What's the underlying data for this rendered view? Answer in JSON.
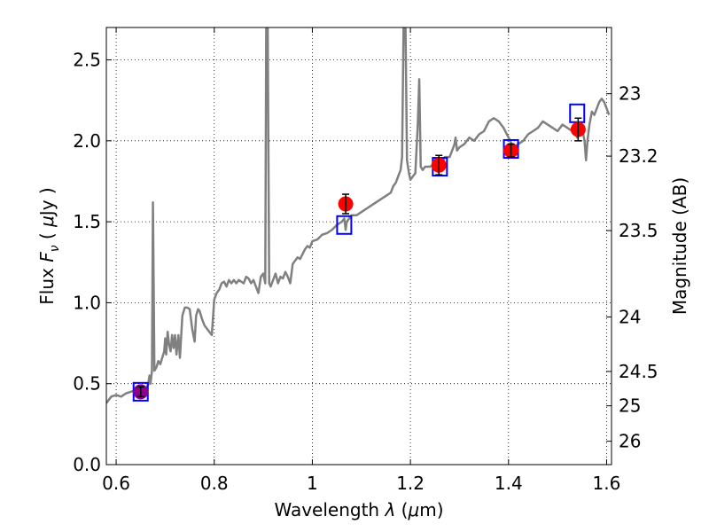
{
  "chart_data": {
    "type": "scatter",
    "title": "",
    "xlabel": {
      "prefix": "Wavelength ",
      "var": "λ",
      "unit_open": " (",
      "unit_mu": "μ",
      "unit_rest": "m)"
    },
    "ylabel": {
      "prefix": "Flux  ",
      "var": "F",
      "sub": "ν",
      "unit_open": "  ( ",
      "unit_mu": "μ",
      "unit_rest": "Jy )"
    },
    "ylabel_right": "Magnitude (AB)",
    "xlim": [
      0.58,
      1.61
    ],
    "ylim": [
      0.0,
      2.7
    ],
    "grid": true,
    "x_ticks": [
      {
        "value": 0.6,
        "label": "0.6"
      },
      {
        "value": 0.8,
        "label": "0.8"
      },
      {
        "value": 1.0,
        "label": "1"
      },
      {
        "value": 1.2,
        "label": "1.2"
      },
      {
        "value": 1.4,
        "label": "1.4"
      },
      {
        "value": 1.6,
        "label": "1.6"
      }
    ],
    "y_ticks": [
      {
        "value": 0.0,
        "label": "0.0"
      },
      {
        "value": 0.5,
        "label": "0.5"
      },
      {
        "value": 1.0,
        "label": "1.0"
      },
      {
        "value": 1.5,
        "label": "1.5"
      },
      {
        "value": 2.0,
        "label": "2.0"
      },
      {
        "value": 2.5,
        "label": "2.5"
      }
    ],
    "right_ticks": [
      {
        "mag": 23.0,
        "label": "23"
      },
      {
        "mag": 23.2,
        "label": "23.2"
      },
      {
        "mag": 23.5,
        "label": "23.5"
      },
      {
        "mag": 24.0,
        "label": "24"
      },
      {
        "mag": 24.5,
        "label": "24.5"
      },
      {
        "mag": 25.0,
        "label": "25"
      },
      {
        "mag": 26.0,
        "label": "26"
      }
    ],
    "series": [
      {
        "name": "model_spectrum",
        "kind": "line",
        "color": "#808080",
        "points": [
          [
            0.58,
            0.38
          ],
          [
            0.59,
            0.42
          ],
          [
            0.6,
            0.43
          ],
          [
            0.61,
            0.42
          ],
          [
            0.62,
            0.44
          ],
          [
            0.63,
            0.45
          ],
          [
            0.64,
            0.46
          ],
          [
            0.65,
            0.46
          ],
          [
            0.66,
            0.47
          ],
          [
            0.665,
            0.49
          ],
          [
            0.668,
            0.55
          ],
          [
            0.67,
            0.5
          ],
          [
            0.673,
            0.58
          ],
          [
            0.675,
            1.62
          ],
          [
            0.678,
            0.58
          ],
          [
            0.682,
            0.6
          ],
          [
            0.686,
            0.64
          ],
          [
            0.69,
            0.62
          ],
          [
            0.694,
            0.66
          ],
          [
            0.698,
            0.7
          ],
          [
            0.7,
            0.78
          ],
          [
            0.702,
            0.68
          ],
          [
            0.705,
            0.82
          ],
          [
            0.708,
            0.74
          ],
          [
            0.711,
            0.7
          ],
          [
            0.714,
            0.8
          ],
          [
            0.717,
            0.72
          ],
          [
            0.72,
            0.8
          ],
          [
            0.723,
            0.68
          ],
          [
            0.727,
            0.8
          ],
          [
            0.73,
            0.66
          ],
          [
            0.735,
            0.92
          ],
          [
            0.74,
            0.97
          ],
          [
            0.745,
            0.97
          ],
          [
            0.75,
            0.96
          ],
          [
            0.755,
            0.84
          ],
          [
            0.76,
            0.76
          ],
          [
            0.763,
            0.92
          ],
          [
            0.767,
            0.96
          ],
          [
            0.77,
            0.95
          ],
          [
            0.775,
            0.9
          ],
          [
            0.78,
            0.86
          ],
          [
            0.785,
            0.84
          ],
          [
            0.79,
            0.82
          ],
          [
            0.795,
            0.8
          ],
          [
            0.8,
            1.02
          ],
          [
            0.805,
            1.06
          ],
          [
            0.81,
            1.08
          ],
          [
            0.815,
            1.12
          ],
          [
            0.82,
            1.13
          ],
          [
            0.825,
            1.1
          ],
          [
            0.83,
            1.14
          ],
          [
            0.835,
            1.12
          ],
          [
            0.84,
            1.14
          ],
          [
            0.845,
            1.12
          ],
          [
            0.85,
            1.14
          ],
          [
            0.86,
            1.12
          ],
          [
            0.865,
            1.16
          ],
          [
            0.87,
            1.15
          ],
          [
            0.875,
            1.12
          ],
          [
            0.88,
            1.14
          ],
          [
            0.885,
            1.1
          ],
          [
            0.89,
            1.06
          ],
          [
            0.895,
            1.16
          ],
          [
            0.9,
            1.18
          ],
          [
            0.904,
            1.12
          ],
          [
            0.906,
            2.7
          ],
          [
            0.909,
            2.7
          ],
          [
            0.912,
            1.12
          ],
          [
            0.915,
            1.1
          ],
          [
            0.92,
            1.14
          ],
          [
            0.925,
            1.18
          ],
          [
            0.93,
            1.12
          ],
          [
            0.935,
            1.16
          ],
          [
            0.94,
            1.15
          ],
          [
            0.945,
            1.19
          ],
          [
            0.95,
            1.16
          ],
          [
            0.955,
            1.12
          ],
          [
            0.96,
            1.24
          ],
          [
            0.965,
            1.26
          ],
          [
            0.97,
            1.28
          ],
          [
            0.975,
            1.27
          ],
          [
            0.98,
            1.3
          ],
          [
            0.985,
            1.33
          ],
          [
            0.99,
            1.35
          ],
          [
            0.995,
            1.34
          ],
          [
            1.0,
            1.38
          ],
          [
            1.01,
            1.39
          ],
          [
            1.02,
            1.42
          ],
          [
            1.03,
            1.43
          ],
          [
            1.04,
            1.45
          ],
          [
            1.05,
            1.48
          ],
          [
            1.06,
            1.5
          ],
          [
            1.065,
            1.52
          ],
          [
            1.068,
            1.45
          ],
          [
            1.07,
            1.5
          ],
          [
            1.075,
            1.52
          ],
          [
            1.08,
            1.54
          ],
          [
            1.09,
            1.54
          ],
          [
            1.1,
            1.56
          ],
          [
            1.11,
            1.58
          ],
          [
            1.12,
            1.6
          ],
          [
            1.13,
            1.62
          ],
          [
            1.14,
            1.64
          ],
          [
            1.15,
            1.66
          ],
          [
            1.16,
            1.68
          ],
          [
            1.165,
            1.72
          ],
          [
            1.17,
            1.74
          ],
          [
            1.175,
            1.78
          ],
          [
            1.18,
            1.82
          ],
          [
            1.183,
            1.9
          ],
          [
            1.186,
            2.7
          ],
          [
            1.19,
            2.7
          ],
          [
            1.193,
            1.88
          ],
          [
            1.197,
            1.8
          ],
          [
            1.2,
            1.76
          ],
          [
            1.205,
            1.78
          ],
          [
            1.21,
            1.8
          ],
          [
            1.215,
            2.1
          ],
          [
            1.218,
            2.38
          ],
          [
            1.221,
            1.84
          ],
          [
            1.225,
            1.82
          ],
          [
            1.23,
            1.84
          ],
          [
            1.24,
            1.84
          ],
          [
            1.25,
            1.86
          ],
          [
            1.26,
            1.88
          ],
          [
            1.265,
            1.86
          ],
          [
            1.27,
            1.9
          ],
          [
            1.28,
            1.9
          ],
          [
            1.285,
            1.94
          ],
          [
            1.29,
            1.98
          ],
          [
            1.292,
            2.02
          ],
          [
            1.295,
            1.94
          ],
          [
            1.3,
            1.96
          ],
          [
            1.31,
            1.98
          ],
          [
            1.32,
            2.02
          ],
          [
            1.33,
            2.0
          ],
          [
            1.34,
            2.04
          ],
          [
            1.35,
            2.06
          ],
          [
            1.36,
            2.12
          ],
          [
            1.37,
            2.14
          ],
          [
            1.38,
            2.12
          ],
          [
            1.39,
            2.08
          ],
          [
            1.4,
            2.02
          ],
          [
            1.41,
            1.96
          ],
          [
            1.42,
            1.98
          ],
          [
            1.43,
            2.0
          ],
          [
            1.44,
            2.04
          ],
          [
            1.45,
            2.06
          ],
          [
            1.46,
            2.08
          ],
          [
            1.47,
            2.12
          ],
          [
            1.48,
            2.1
          ],
          [
            1.49,
            2.08
          ],
          [
            1.5,
            2.06
          ],
          [
            1.51,
            2.1
          ],
          [
            1.52,
            2.08
          ],
          [
            1.53,
            2.06
          ],
          [
            1.535,
            2.05
          ],
          [
            1.54,
            2.02
          ],
          [
            1.545,
            2.06
          ],
          [
            1.55,
            2.08
          ],
          [
            1.555,
            2.0
          ],
          [
            1.558,
            1.88
          ],
          [
            1.561,
            2.0
          ],
          [
            1.565,
            2.1
          ],
          [
            1.57,
            2.18
          ],
          [
            1.575,
            2.16
          ],
          [
            1.58,
            2.2
          ],
          [
            1.585,
            2.24
          ],
          [
            1.59,
            2.26
          ],
          [
            1.595,
            2.24
          ],
          [
            1.6,
            2.2
          ],
          [
            1.605,
            2.16
          ]
        ]
      },
      {
        "name": "model_photometry",
        "kind": "open_square",
        "color": "#0000ff",
        "points": [
          [
            0.65,
            0.45
          ],
          [
            1.065,
            1.48
          ],
          [
            1.26,
            1.84
          ],
          [
            1.405,
            1.95
          ],
          [
            1.54,
            2.17
          ]
        ]
      },
      {
        "name": "observed_photometry",
        "kind": "filled_circle",
        "color": "#ff0000",
        "points": [
          {
            "x": 1.068,
            "y": 1.61,
            "err": 0.06
          },
          {
            "x": 1.258,
            "y": 1.85,
            "err": 0.06
          },
          {
            "x": 1.405,
            "y": 1.94,
            "err": 0.04
          },
          {
            "x": 1.542,
            "y": 2.07,
            "err": 0.07
          }
        ]
      },
      {
        "name": "observed_optical",
        "kind": "filled_circle",
        "color": "#8b008b",
        "points": [
          {
            "x": 0.65,
            "y": 0.45,
            "err": 0.03
          }
        ]
      }
    ]
  }
}
